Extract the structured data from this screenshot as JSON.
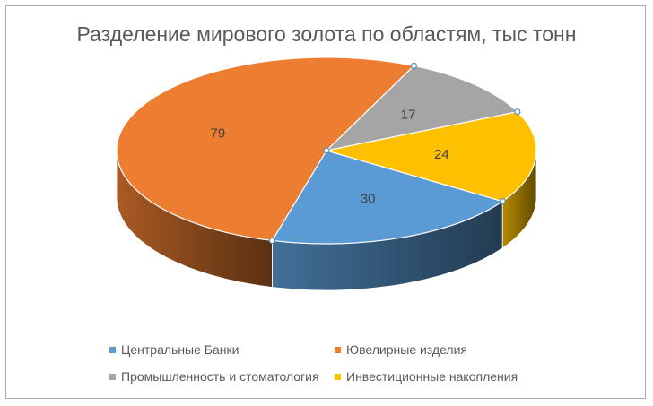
{
  "chart_data": {
    "type": "pie",
    "title": "Разделение мирового золота по областям, тыс тонн",
    "categories": [
      "Центральные Банки",
      "Ювелирные изделия",
      "Промышленность и стоматология",
      "Инвестиционные накопления"
    ],
    "values": [
      30,
      79,
      17,
      24
    ],
    "colors": [
      "#5b9bd5",
      "#ed7d31",
      "#a5a5a5",
      "#ffc000"
    ],
    "style": "3d-pie",
    "legend_position": "bottom",
    "data_labels": true
  }
}
